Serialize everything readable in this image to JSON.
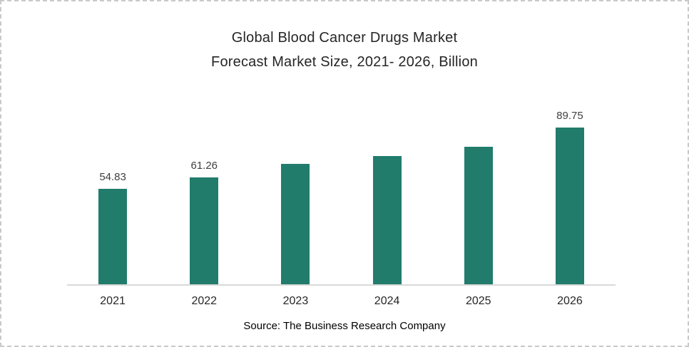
{
  "page": {
    "background": "#ffffff",
    "border_color": "#c9c9c9"
  },
  "chart_data": {
    "type": "bar",
    "title_line1": "Global Blood Cancer Drugs Market",
    "title_line2": "Forecast Market Size, 2021- 2026, Billion",
    "categories": [
      "2021",
      "2022",
      "2023",
      "2024",
      "2025",
      "2026"
    ],
    "values": [
      54.83,
      61.26,
      68.9,
      73.7,
      79.0,
      89.75
    ],
    "data_labels": [
      "54.83",
      "61.26",
      "",
      "",
      "",
      "89.75"
    ],
    "xlabel": "",
    "ylabel": "",
    "ylim": [
      0,
      98
    ],
    "grid": "off",
    "legend": "none",
    "bar_color": "#217c6c",
    "axis_line_color": "#d9d9d9",
    "data_label_color": "#404040",
    "tick_label_color": "#262626",
    "title_color": "#262626"
  },
  "source": {
    "text": "Source: The Business Research Company"
  }
}
